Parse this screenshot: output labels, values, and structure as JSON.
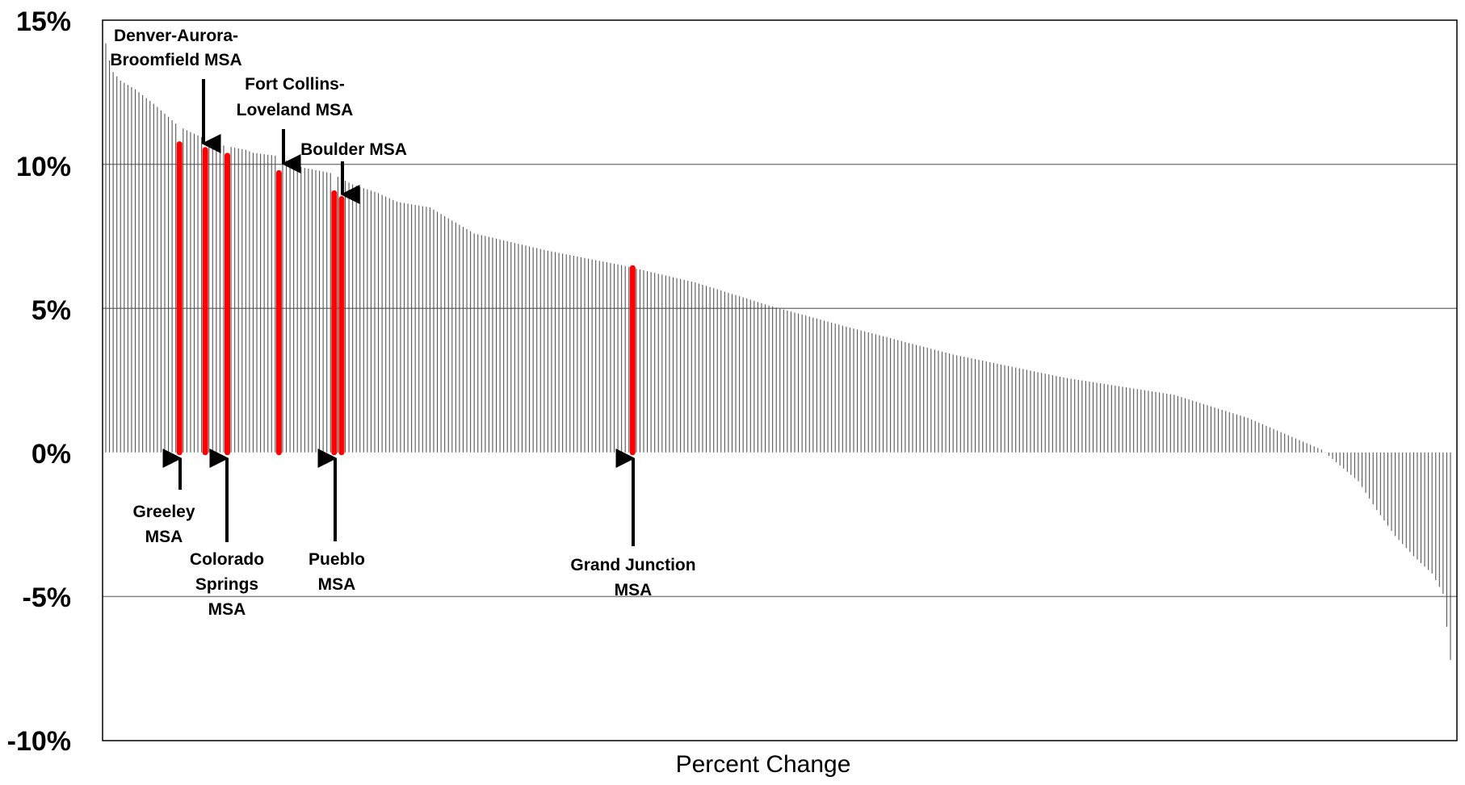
{
  "chart_data": {
    "type": "bar",
    "xlabel": "Percent Change",
    "ylabel": "",
    "ylim": [
      -10,
      15
    ],
    "yticks": [
      15,
      10,
      5,
      0,
      -5,
      -10
    ],
    "ytick_labels": [
      "15%",
      "10%",
      "5%",
      "0%",
      "-5%",
      "-10%"
    ],
    "gridlines": [
      10,
      5,
      -5
    ],
    "grid": true,
    "bar_count": 366,
    "colors": {
      "bar": "#555555",
      "highlight": "#ff0000",
      "grid": "#808080",
      "arrow": "#000000"
    },
    "profile": {
      "ranks": [
        0,
        1,
        2,
        4,
        8,
        13,
        20,
        30,
        38,
        40,
        46,
        53,
        61,
        67,
        74,
        79,
        88,
        100,
        120,
        140,
        160,
        180,
        200,
        230,
        260,
        290,
        310,
        330,
        340,
        345,
        350,
        355,
        360,
        363,
        365
      ],
      "values": [
        14.2,
        13.6,
        13.2,
        12.9,
        12.6,
        12.1,
        11.3,
        10.7,
        10.5,
        10.4,
        10.3,
        9.9,
        9.7,
        9.3,
        9.0,
        8.7,
        8.5,
        7.6,
        7.0,
        6.5,
        5.9,
        5.1,
        4.4,
        3.4,
        2.6,
        2.0,
        1.2,
        0.1,
        -1.0,
        -2.0,
        -2.9,
        -3.6,
        -4.2,
        -4.9,
        -7.2
      ]
    },
    "highlights": [
      {
        "name": "Greeley MSA",
        "rank": 20,
        "value": 10.7
      },
      {
        "name": "Denver-Aurora-Broomfield MSA",
        "rank": 27,
        "value": 10.5
      },
      {
        "name": "Colorado Springs MSA",
        "rank": 33,
        "value": 10.3
      },
      {
        "name": "Fort Collins-Loveland MSA",
        "rank": 47,
        "value": 9.7
      },
      {
        "name": "Pueblo MSA",
        "rank": 62,
        "value": 9.0
      },
      {
        "name": "Boulder MSA",
        "rank": 64,
        "value": 8.8
      },
      {
        "name": "Grand Junction MSA",
        "rank": 143,
        "value": 6.4
      }
    ]
  },
  "annotations": {
    "denver_line1": "Denver-Aurora-",
    "denver_line2": "Broomfield MSA",
    "fortcollins_line1": "Fort Collins-",
    "fortcollins_line2": "Loveland MSA",
    "boulder": "Boulder MSA",
    "greeley_line1": "Greeley",
    "greeley_line2": "MSA",
    "cosprings_line1": "Colorado",
    "cosprings_line2": "Springs",
    "cosprings_line3": "MSA",
    "pueblo_line1": "Pueblo",
    "pueblo_line2": "MSA",
    "grandjunction_line1": "Grand Junction",
    "grandjunction_line2": "MSA"
  }
}
